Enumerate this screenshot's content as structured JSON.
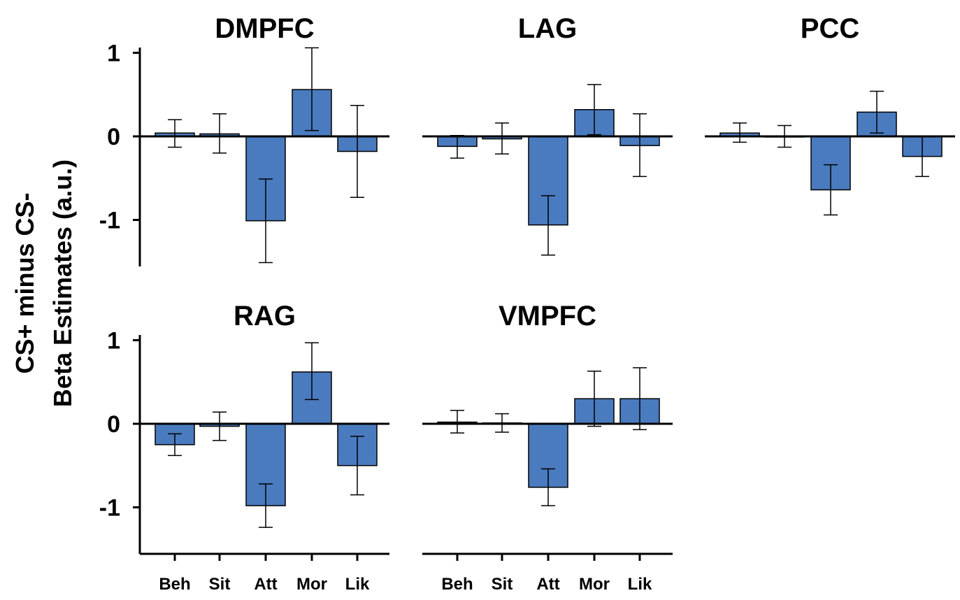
{
  "chart_data": {
    "type": "bar",
    "ylabel_lines": [
      "CS+ minus CS-",
      "Beta Estimates (a.u.)"
    ],
    "categories": [
      "Beh",
      "Sit",
      "Att",
      "Mor",
      "Lik"
    ],
    "ylim": [
      -1.55,
      1.08
    ],
    "yticks": [
      1,
      0,
      -1
    ],
    "bar_color": "#4a7bbf",
    "panels": [
      {
        "title": "DMPFC",
        "values": [
          0.04,
          0.03,
          -1.01,
          0.56,
          -0.18
        ],
        "err_low": [
          -0.13,
          -0.2,
          -1.51,
          0.07,
          -0.73
        ],
        "err_high": [
          0.2,
          0.27,
          -0.51,
          1.06,
          0.37
        ]
      },
      {
        "title": "LAG",
        "values": [
          -0.12,
          -0.03,
          -1.06,
          0.32,
          -0.11
        ],
        "err_low": [
          -0.26,
          -0.21,
          -1.42,
          0.02,
          -0.48
        ],
        "err_high": [
          0.01,
          0.16,
          -0.71,
          0.62,
          0.27
        ]
      },
      {
        "title": "PCC",
        "values": [
          0.04,
          0.0,
          -0.64,
          0.29,
          -0.24
        ],
        "err_low": [
          -0.07,
          -0.13,
          -0.94,
          0.04,
          -0.48
        ],
        "err_high": [
          0.16,
          0.13,
          -0.34,
          0.54,
          0.0
        ]
      },
      {
        "title": "RAG",
        "values": [
          -0.25,
          -0.03,
          -0.98,
          0.62,
          -0.5
        ],
        "err_low": [
          -0.38,
          -0.2,
          -1.24,
          0.29,
          -0.85
        ],
        "err_high": [
          -0.12,
          0.14,
          -0.72,
          0.97,
          -0.15
        ]
      },
      {
        "title": "VMPFC",
        "values": [
          0.02,
          0.01,
          -0.76,
          0.3,
          0.3
        ],
        "err_low": [
          -0.11,
          -0.1,
          -0.98,
          -0.03,
          -0.07
        ],
        "err_high": [
          0.16,
          0.12,
          -0.54,
          0.63,
          0.67
        ]
      }
    ]
  }
}
